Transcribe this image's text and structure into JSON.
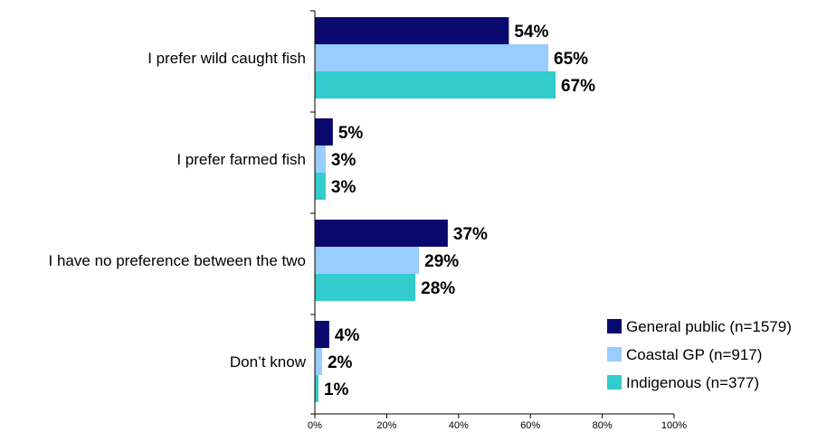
{
  "chart_data": {
    "type": "bar",
    "orientation": "horizontal",
    "categories": [
      "I prefer wild caught fish",
      "I prefer farmed fish",
      "I have no preference between the two",
      "Don’t know"
    ],
    "series": [
      {
        "name": "General public (n=1579)",
        "color": "#0a0a6e",
        "values": [
          54,
          5,
          37,
          4
        ],
        "labels": [
          "54%",
          "5%",
          "37%",
          "4%"
        ]
      },
      {
        "name": "Coastal GP (n=917)",
        "color": "#99ccff",
        "values": [
          65,
          3,
          29,
          2
        ],
        "labels": [
          "65%",
          "3%",
          "29%",
          "2%"
        ]
      },
      {
        "name": "Indigenous (n=377)",
        "color": "#33cccc",
        "values": [
          67,
          3,
          28,
          1
        ],
        "labels": [
          "67%",
          "3%",
          "28%",
          "1%"
        ]
      }
    ],
    "xlim": [
      0,
      100
    ],
    "ticks": [
      0,
      20,
      40,
      60,
      80,
      100
    ],
    "tick_labels": [
      "0%",
      "20%",
      "40%",
      "60%",
      "80%",
      "100%"
    ],
    "grid": false,
    "legend_position": "bottom-right",
    "title": "",
    "xlabel": "",
    "ylabel": ""
  }
}
